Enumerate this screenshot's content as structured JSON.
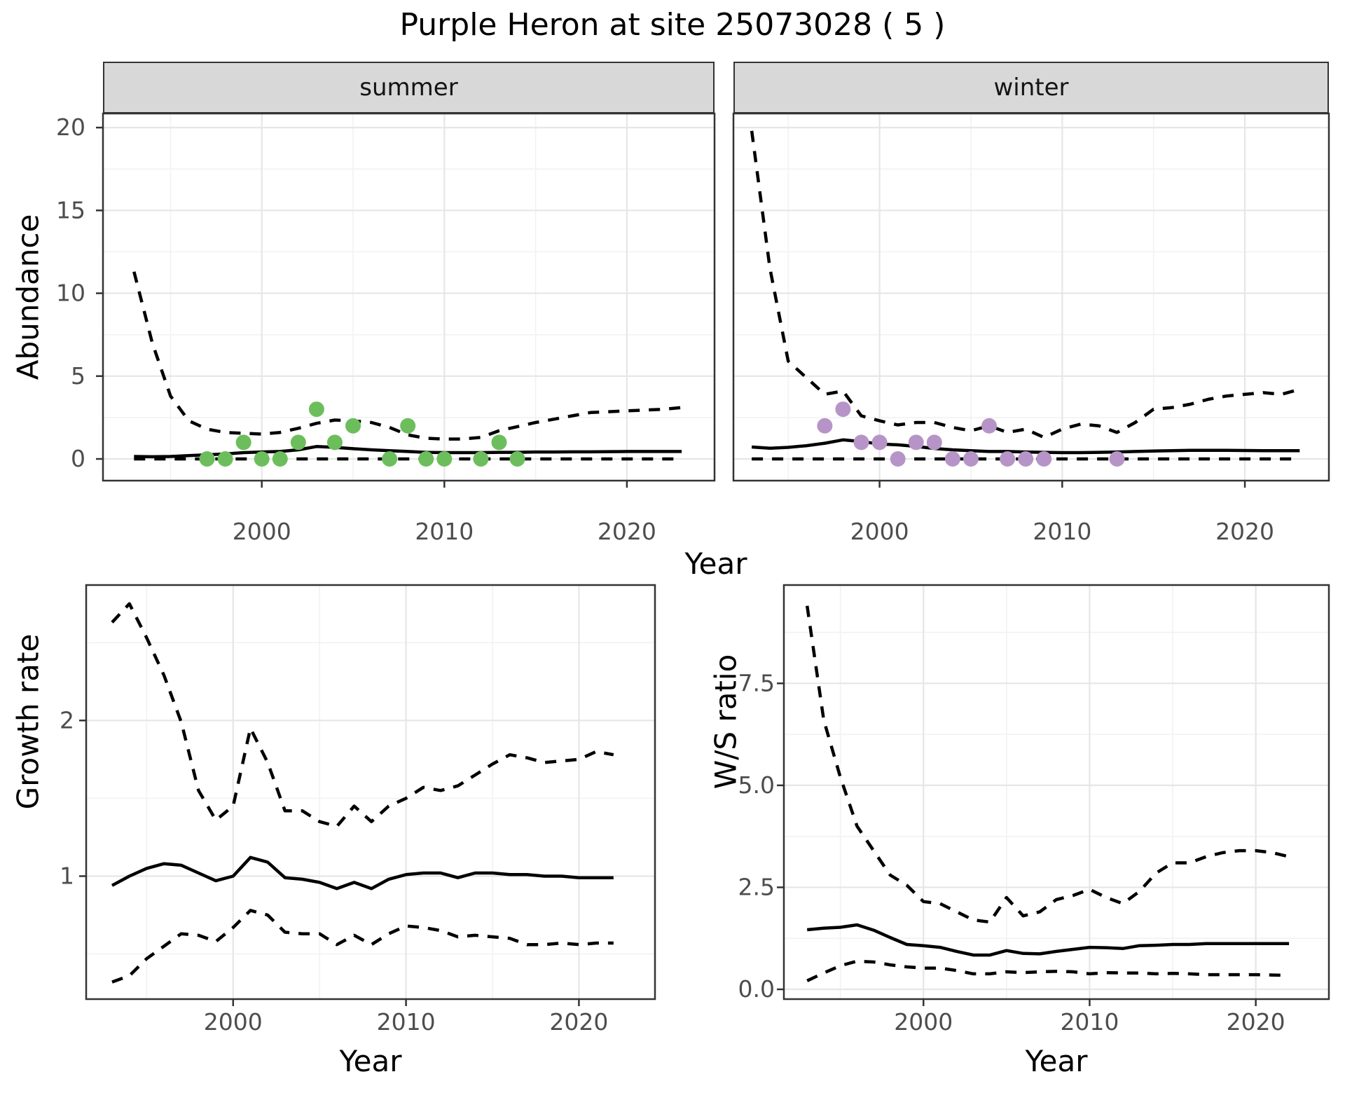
{
  "title": "Purple Heron at site 25073028 ( 5 )",
  "colors": {
    "summer_points": "#6cbe5c",
    "winter_points": "#b794c7",
    "line": "#000000",
    "strip_background": "#d8d8d8",
    "panel_border": "#333333",
    "grid_major": "#e6e6e6",
    "grid_minor": "#f2f2f2",
    "tick_text": "#4d4d4d"
  },
  "chart_data": [
    {
      "id": "summer",
      "type": "line",
      "facet_label": "summer",
      "xlabel": "Year",
      "ylabel": "Abundance",
      "legend_position": "none",
      "grid": true,
      "xlim": [
        1991.3,
        2024.8
      ],
      "ylim": [
        -1.31,
        20.85
      ],
      "x_ticks": [
        2000,
        2010,
        2020
      ],
      "x_tick_labels": [
        "2000",
        "2010",
        "2020"
      ],
      "x_minor": [
        1995,
        2005,
        2015
      ],
      "y_ticks": [
        0,
        5,
        10,
        15,
        20
      ],
      "y_tick_labels": [
        "0",
        "5",
        "10",
        "15",
        "20"
      ],
      "y_minor": [
        2.5,
        7.5,
        12.5,
        17.5
      ],
      "years": [
        1993,
        1994,
        1995,
        1996,
        1997,
        1998,
        1999,
        2000,
        2001,
        2002,
        2003,
        2004,
        2005,
        2006,
        2007,
        2008,
        2009,
        2010,
        2011,
        2012,
        2013,
        2014,
        2015,
        2016,
        2017,
        2018,
        2019,
        2020,
        2021,
        2022,
        2023
      ],
      "mean": [
        0.15,
        0.13,
        0.15,
        0.2,
        0.25,
        0.3,
        0.38,
        0.42,
        0.45,
        0.55,
        0.75,
        0.7,
        0.62,
        0.55,
        0.5,
        0.45,
        0.4,
        0.38,
        0.38,
        0.38,
        0.4,
        0.4,
        0.42,
        0.42,
        0.43,
        0.43,
        0.44,
        0.45,
        0.45,
        0.45,
        0.45
      ],
      "upper": [
        11.3,
        7.0,
        3.8,
        2.3,
        1.8,
        1.6,
        1.55,
        1.5,
        1.6,
        1.85,
        2.15,
        2.35,
        2.3,
        2.2,
        1.9,
        1.45,
        1.25,
        1.2,
        1.2,
        1.3,
        1.7,
        1.95,
        2.2,
        2.4,
        2.6,
        2.8,
        2.85,
        2.9,
        2.95,
        3.0,
        3.1
      ],
      "lower": [
        0,
        0,
        0,
        0,
        0,
        0,
        0,
        0,
        0,
        0,
        0,
        0,
        0,
        0,
        0,
        0,
        0,
        0,
        0,
        0,
        0,
        0,
        0,
        0,
        0,
        0,
        0,
        0,
        0,
        0,
        0
      ],
      "points": {
        "years": [
          1997,
          1998,
          1999,
          2000,
          2001,
          2002,
          2003,
          2004,
          2005,
          2007,
          2008,
          2009,
          2010,
          2012,
          2013,
          2014
        ],
        "values": [
          0,
          0,
          1,
          0,
          0,
          1,
          3,
          1,
          2,
          0,
          2,
          0,
          0,
          0,
          1,
          0
        ]
      },
      "point_color": "#6cbe5c"
    },
    {
      "id": "winter",
      "type": "line",
      "facet_label": "winter",
      "xlabel": "Year",
      "ylabel": "Abundance",
      "legend_position": "none",
      "grid": true,
      "xlim": [
        1992.0,
        2024.6
      ],
      "ylim": [
        -1.31,
        20.85
      ],
      "x_ticks": [
        2000,
        2010,
        2020
      ],
      "x_tick_labels": [
        "2000",
        "2010",
        "2020"
      ],
      "x_minor": [
        1995,
        2005,
        2015
      ],
      "y_ticks": [
        0,
        5,
        10,
        15,
        20
      ],
      "y_tick_labels": [
        "0",
        "5",
        "10",
        "15",
        "20"
      ],
      "y_minor": [
        2.5,
        7.5,
        12.5,
        17.5
      ],
      "years": [
        1993,
        1994,
        1995,
        1996,
        1997,
        1998,
        1999,
        2000,
        2001,
        2002,
        2003,
        2004,
        2005,
        2006,
        2007,
        2008,
        2009,
        2010,
        2011,
        2012,
        2013,
        2014,
        2015,
        2016,
        2017,
        2018,
        2019,
        2020,
        2021,
        2022,
        2023
      ],
      "mean": [
        0.72,
        0.65,
        0.7,
        0.8,
        0.95,
        1.15,
        1.05,
        0.9,
        0.85,
        0.76,
        0.63,
        0.55,
        0.5,
        0.45,
        0.45,
        0.42,
        0.4,
        0.38,
        0.38,
        0.4,
        0.42,
        0.45,
        0.48,
        0.5,
        0.52,
        0.52,
        0.52,
        0.51,
        0.5,
        0.5,
        0.5
      ],
      "upper": [
        19.8,
        11.5,
        5.9,
        4.9,
        3.9,
        4.1,
        2.6,
        2.3,
        2.05,
        2.2,
        2.2,
        1.9,
        1.7,
        2.0,
        1.6,
        1.8,
        1.3,
        1.8,
        2.1,
        2.0,
        1.6,
        2.2,
        3.0,
        3.1,
        3.3,
        3.6,
        3.8,
        3.9,
        4.0,
        3.9,
        4.2
      ],
      "lower": [
        0,
        0,
        0,
        0,
        0,
        0,
        0,
        0,
        0,
        0,
        0,
        0,
        0,
        0,
        0,
        0,
        0,
        0,
        0,
        0,
        0,
        0,
        0,
        0,
        0,
        0,
        0,
        0,
        0,
        0,
        0
      ],
      "points": {
        "years": [
          1997,
          1998,
          1999,
          2000,
          2001,
          2002,
          2003,
          2004,
          2005,
          2006,
          2007,
          2008,
          2009,
          2013
        ],
        "values": [
          2,
          3,
          1,
          1,
          0,
          1,
          1,
          0,
          0,
          2,
          0,
          0,
          0,
          0
        ]
      },
      "point_color": "#b794c7"
    },
    {
      "id": "growth_rate",
      "type": "line",
      "facet_label": "",
      "xlabel": "Year",
      "ylabel": "Growth rate",
      "legend_position": "none",
      "grid": true,
      "xlim": [
        1991.5,
        2024.4
      ],
      "ylim": [
        0.21,
        2.87
      ],
      "x_ticks": [
        2000,
        2010,
        2020
      ],
      "x_tick_labels": [
        "2000",
        "2010",
        "2020"
      ],
      "x_minor": [
        1995,
        2005,
        2015
      ],
      "y_ticks": [
        1,
        2
      ],
      "y_tick_labels": [
        "1",
        "2"
      ],
      "y_minor": [
        0.5,
        1.5,
        2.5
      ],
      "years": [
        1993,
        1994,
        1995,
        1996,
        1997,
        1998,
        1999,
        2000,
        2001,
        2002,
        2003,
        2004,
        2005,
        2006,
        2007,
        2008,
        2009,
        2010,
        2011,
        2012,
        2013,
        2014,
        2015,
        2016,
        2017,
        2018,
        2019,
        2020,
        2021,
        2022
      ],
      "mean": [
        0.94,
        1.0,
        1.05,
        1.08,
        1.07,
        1.02,
        0.97,
        1.0,
        1.12,
        1.09,
        0.99,
        0.98,
        0.96,
        0.92,
        0.96,
        0.92,
        0.98,
        1.01,
        1.02,
        1.02,
        0.99,
        1.02,
        1.02,
        1.01,
        1.01,
        1.0,
        1.0,
        0.99,
        0.99,
        0.99
      ],
      "upper": [
        2.63,
        2.75,
        2.53,
        2.29,
        1.99,
        1.55,
        1.36,
        1.45,
        1.95,
        1.73,
        1.42,
        1.42,
        1.35,
        1.32,
        1.45,
        1.35,
        1.45,
        1.5,
        1.57,
        1.55,
        1.58,
        1.65,
        1.72,
        1.78,
        1.76,
        1.73,
        1.74,
        1.75,
        1.8,
        1.78
      ],
      "lower": [
        0.32,
        0.36,
        0.47,
        0.55,
        0.63,
        0.62,
        0.58,
        0.67,
        0.78,
        0.75,
        0.64,
        0.63,
        0.63,
        0.56,
        0.62,
        0.56,
        0.63,
        0.68,
        0.67,
        0.65,
        0.61,
        0.62,
        0.61,
        0.6,
        0.56,
        0.56,
        0.57,
        0.56,
        0.57,
        0.57
      ],
      "points": null,
      "point_color": null
    },
    {
      "id": "ws_ratio",
      "type": "line",
      "facet_label": "",
      "xlabel": "Year",
      "ylabel": "W/S ratio",
      "legend_position": "none",
      "grid": true,
      "xlim": [
        1991.6,
        2024.4
      ],
      "ylim": [
        -0.24,
        9.91
      ],
      "x_ticks": [
        2000,
        2010,
        2020
      ],
      "x_tick_labels": [
        "2000",
        "2010",
        "2020"
      ],
      "x_minor": [
        1995,
        2005,
        2015
      ],
      "y_ticks": [
        0,
        2.5,
        5,
        7.5
      ],
      "y_tick_labels": [
        "0.0",
        "2.5",
        "5.0",
        "7.5"
      ],
      "y_minor": [
        1.25,
        3.75,
        6.25,
        8.75
      ],
      "years": [
        1993,
        1994,
        1995,
        1996,
        1997,
        1998,
        1999,
        2000,
        2001,
        2002,
        2003,
        2004,
        2005,
        2006,
        2007,
        2008,
        2009,
        2010,
        2011,
        2012,
        2013,
        2014,
        2015,
        2016,
        2017,
        2018,
        2019,
        2020,
        2021,
        2022
      ],
      "mean": [
        1.46,
        1.5,
        1.52,
        1.58,
        1.45,
        1.27,
        1.1,
        1.07,
        1.03,
        0.93,
        0.84,
        0.84,
        0.95,
        0.88,
        0.87,
        0.93,
        0.98,
        1.03,
        1.02,
        1.0,
        1.07,
        1.08,
        1.1,
        1.1,
        1.12,
        1.12,
        1.12,
        1.12,
        1.12,
        1.12
      ],
      "upper": [
        9.4,
        6.6,
        5.2,
        4.0,
        3.4,
        2.8,
        2.55,
        2.15,
        2.1,
        1.9,
        1.7,
        1.65,
        2.25,
        1.8,
        1.9,
        2.2,
        2.3,
        2.45,
        2.25,
        2.1,
        2.4,
        2.85,
        3.1,
        3.1,
        3.25,
        3.35,
        3.4,
        3.4,
        3.35,
        3.25
      ],
      "lower": [
        0.21,
        0.4,
        0.58,
        0.69,
        0.67,
        0.6,
        0.55,
        0.52,
        0.52,
        0.46,
        0.38,
        0.38,
        0.43,
        0.41,
        0.43,
        0.44,
        0.43,
        0.38,
        0.41,
        0.4,
        0.4,
        0.38,
        0.39,
        0.38,
        0.36,
        0.36,
        0.36,
        0.36,
        0.35,
        0.34
      ],
      "points": null,
      "point_color": null
    }
  ]
}
